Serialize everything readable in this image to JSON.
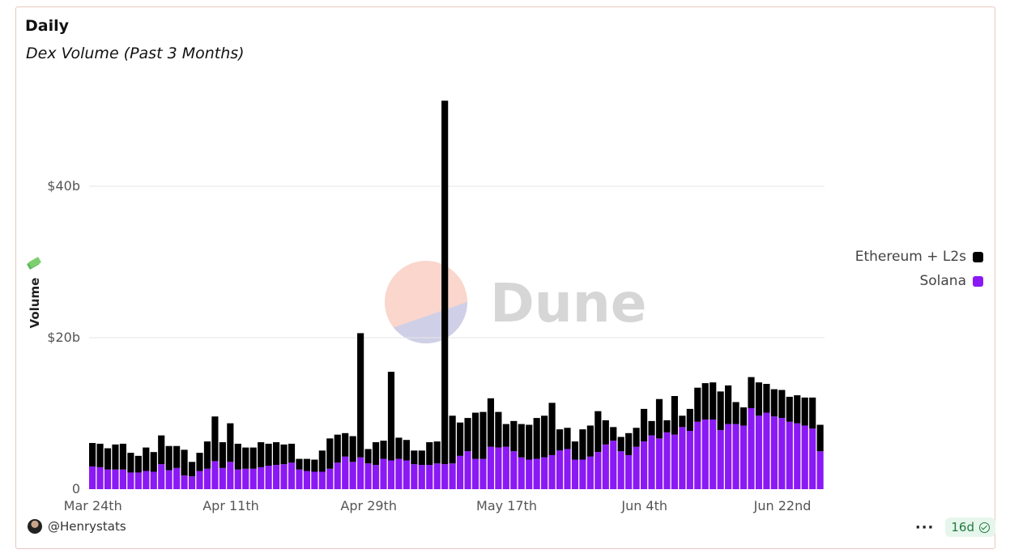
{
  "header": {
    "title": "Daily",
    "subtitle": "Dex Volume (Past 3 Months)"
  },
  "watermark": {
    "text": "Dune"
  },
  "footer": {
    "user": "@Henrystats",
    "more_icon": "more-icon",
    "age_badge": "16d"
  },
  "colors": {
    "ethereum": "#000000",
    "solana": "#8a19f4",
    "grid": "#e6e6e6",
    "axis_text": "#555555"
  },
  "chart_data": {
    "type": "bar",
    "stacked": true,
    "ylabel": "Volume",
    "ylabel_icon": "money-icon",
    "y_ticks": [
      {
        "value": 0,
        "label": "0"
      },
      {
        "value": 20,
        "label": "$20b"
      },
      {
        "value": 40,
        "label": "$40b"
      }
    ],
    "ylim": [
      0,
      55
    ],
    "y_unit": "billions USD",
    "x_ticks": [
      {
        "index": 0,
        "label": "Mar 24th"
      },
      {
        "index": 18,
        "label": "Apr 11th"
      },
      {
        "index": 36,
        "label": "Apr 29th"
      },
      {
        "index": 54,
        "label": "May 17th"
      },
      {
        "index": 72,
        "label": "Jun 4th"
      },
      {
        "index": 90,
        "label": "Jun 22nd"
      }
    ],
    "x_start": "2024-03-24",
    "legend_position": "right",
    "series": [
      {
        "name": "Ethereum + L2s",
        "values": [
          3.1,
          3.1,
          2.8,
          3.3,
          3.4,
          2.6,
          2.2,
          3.1,
          2.6,
          3.8,
          3.2,
          2.9,
          3.4,
          1.9,
          2.4,
          3.6,
          5.9,
          3.4,
          5.1,
          3.4,
          2.8,
          2.8,
          3.3,
          2.9,
          3.0,
          2.6,
          2.5,
          1.4,
          1.6,
          1.6,
          2.8,
          4.0,
          3.7,
          3.1,
          3.4,
          16.4,
          1.9,
          3.0,
          2.4,
          11.7,
          2.8,
          2.7,
          1.8,
          1.9,
          3.0,
          2.9,
          48.0,
          6.3,
          4.4,
          4.4,
          6.1,
          6.2,
          6.4,
          4.7,
          3.0,
          4.0,
          4.4,
          4.6,
          5.4,
          5.5,
          6.9,
          2.8,
          2.8,
          2.4,
          4.0,
          4.1,
          5.4,
          3.2,
          1.8,
          1.9,
          2.9,
          2.5,
          4.3,
          1.9,
          5.2,
          1.6,
          5.1,
          1.5,
          2.9,
          4.5,
          4.8,
          4.9,
          5.1,
          5.1,
          2.9,
          2.4,
          4.1,
          4.4,
          3.8,
          3.6,
          3.7,
          3.3,
          3.7,
          3.7,
          4.1,
          3.5
        ],
        "color": "#000000"
      },
      {
        "name": "Solana",
        "values": [
          3.0,
          2.9,
          2.6,
          2.6,
          2.6,
          2.2,
          2.2,
          2.4,
          2.3,
          3.3,
          2.5,
          2.8,
          1.8,
          1.7,
          2.4,
          2.7,
          3.7,
          2.8,
          3.6,
          2.6,
          2.7,
          2.7,
          2.9,
          3.1,
          3.2,
          3.3,
          3.5,
          2.6,
          2.4,
          2.3,
          2.3,
          2.7,
          3.5,
          4.3,
          3.6,
          4.2,
          3.4,
          3.2,
          4.0,
          3.8,
          4.0,
          3.8,
          3.3,
          3.2,
          3.2,
          3.4,
          3.3,
          3.4,
          4.4,
          5.0,
          4.0,
          4.0,
          5.6,
          5.5,
          5.6,
          5.0,
          4.2,
          3.9,
          4.0,
          4.2,
          4.5,
          5.1,
          5.3,
          3.9,
          3.9,
          4.3,
          4.9,
          5.9,
          6.4,
          5.0,
          4.5,
          5.6,
          6.3,
          7.1,
          6.7,
          7.5,
          7.2,
          8.2,
          7.7,
          8.9,
          9.2,
          9.2,
          7.8,
          8.6,
          8.6,
          8.4,
          10.7,
          9.7,
          10.1,
          9.6,
          9.4,
          8.9,
          8.7,
          8.4,
          8.0,
          5.0
        ],
        "color": "#8a19f4"
      }
    ]
  }
}
